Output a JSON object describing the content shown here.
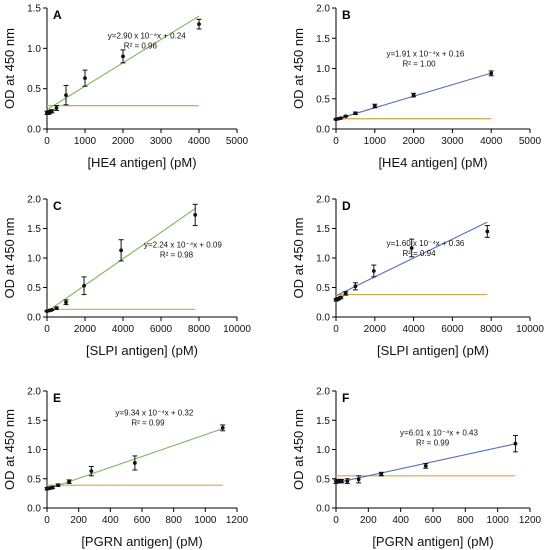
{
  "chart_data": [
    {
      "type": "scatter",
      "panel": "A",
      "xlabel": "[HE4 antigen] (pM)",
      "ylabel": "OD at 450 nm",
      "xlim": [
        0,
        5000
      ],
      "ylim": [
        0,
        1.5
      ],
      "xticks": [
        0,
        1000,
        2000,
        3000,
        4000,
        5000
      ],
      "yticks": [
        0,
        0.5,
        1.0,
        1.5
      ],
      "ytick_labels": [
        "0.0",
        "0.5",
        "1.0",
        "1.5"
      ],
      "points": [
        {
          "x": 0,
          "y": 0.2,
          "err": 0.02
        },
        {
          "x": 31,
          "y": 0.2,
          "err": 0.02
        },
        {
          "x": 62,
          "y": 0.21,
          "err": 0.02
        },
        {
          "x": 125,
          "y": 0.22,
          "err": 0.02
        },
        {
          "x": 250,
          "y": 0.26,
          "err": 0.03
        },
        {
          "x": 500,
          "y": 0.42,
          "err": 0.12
        },
        {
          "x": 1000,
          "y": 0.63,
          "err": 0.1
        },
        {
          "x": 2000,
          "y": 0.9,
          "err": 0.08
        },
        {
          "x": 4000,
          "y": 1.3,
          "err": 0.06
        }
      ],
      "fit": {
        "slope": 0.00029,
        "intercept": 0.24,
        "x_range": [
          0,
          4000
        ],
        "color": "#79b859"
      },
      "cutoff": {
        "y": 0.29,
        "x_range": [
          0,
          4000
        ],
        "color": "#d4a843"
      },
      "equation": "y=2.90 x 10⁻⁴x + 0.24",
      "r2": "R² = 0.96"
    },
    {
      "type": "scatter",
      "panel": "B",
      "xlabel": "[HE4 antigen] (pM)",
      "ylabel": "OD at 450 nm",
      "xlim": [
        0,
        5000
      ],
      "ylim": [
        0,
        2.0
      ],
      "xticks": [
        0,
        1000,
        2000,
        3000,
        4000,
        5000
      ],
      "yticks": [
        0,
        0.5,
        1.0,
        1.5,
        2.0
      ],
      "ytick_labels": [
        "0.0",
        "0.5",
        "1.0",
        "1.5",
        "2.0"
      ],
      "points": [
        {
          "x": 0,
          "y": 0.16,
          "err": 0.01
        },
        {
          "x": 62,
          "y": 0.17,
          "err": 0.01
        },
        {
          "x": 125,
          "y": 0.18,
          "err": 0.01
        },
        {
          "x": 250,
          "y": 0.21,
          "err": 0.01
        },
        {
          "x": 500,
          "y": 0.26,
          "err": 0.02
        },
        {
          "x": 1000,
          "y": 0.38,
          "err": 0.03
        },
        {
          "x": 2000,
          "y": 0.56,
          "err": 0.03
        },
        {
          "x": 4000,
          "y": 0.92,
          "err": 0.04
        }
      ],
      "fit": {
        "slope": 0.000191,
        "intercept": 0.16,
        "x_range": [
          0,
          4000
        ],
        "color": "#5570b5"
      },
      "cutoff": {
        "y": 0.17,
        "x_range": [
          0,
          4000
        ],
        "color": "#d4a843"
      },
      "equation": "y=1.91 x 10⁻⁴x + 0.16",
      "r2": "R² = 1.00"
    },
    {
      "type": "scatter",
      "panel": "C",
      "xlabel": "[SLPI antigen] (pM)",
      "ylabel": "OD at 450 nm",
      "xlim": [
        0,
        10000
      ],
      "ylim": [
        0,
        2.0
      ],
      "xticks": [
        0,
        2000,
        4000,
        6000,
        8000,
        10000
      ],
      "yticks": [
        0,
        0.5,
        1.0,
        1.5,
        2.0
      ],
      "ytick_labels": [
        "0.0",
        "0.5",
        "1.0",
        "1.5",
        "2.0"
      ],
      "points": [
        {
          "x": 0,
          "y": 0.1,
          "err": 0.01
        },
        {
          "x": 125,
          "y": 0.11,
          "err": 0.01
        },
        {
          "x": 250,
          "y": 0.12,
          "err": 0.01
        },
        {
          "x": 500,
          "y": 0.15,
          "err": 0.02
        },
        {
          "x": 1000,
          "y": 0.25,
          "err": 0.04
        },
        {
          "x": 1950,
          "y": 0.53,
          "err": 0.15
        },
        {
          "x": 3900,
          "y": 1.13,
          "err": 0.18
        },
        {
          "x": 7800,
          "y": 1.73,
          "err": 0.18
        }
      ],
      "fit": {
        "slope": 0.000224,
        "intercept": 0.09,
        "x_range": [
          0,
          7800
        ],
        "color": "#79b859"
      },
      "cutoff": {
        "y": 0.13,
        "x_range": [
          0,
          7800
        ],
        "color": "#d4a843"
      },
      "equation": "y=2.24 x 10⁻⁴x + 0.09",
      "r2": "R² = 0.98"
    },
    {
      "type": "scatter",
      "panel": "D",
      "xlabel": "[SLPI antigen] (pM)",
      "ylabel": "OD at 450 nm",
      "xlim": [
        0,
        10000
      ],
      "ylim": [
        0,
        2.0
      ],
      "xticks": [
        0,
        2000,
        4000,
        6000,
        8000,
        10000
      ],
      "yticks": [
        0,
        0.5,
        1.0,
        1.5,
        2.0
      ],
      "ytick_labels": [
        "0.0",
        "0.5",
        "1.0",
        "1.5",
        "2.0"
      ],
      "points": [
        {
          "x": 0,
          "y": 0.29,
          "err": 0.02
        },
        {
          "x": 62,
          "y": 0.3,
          "err": 0.02
        },
        {
          "x": 125,
          "y": 0.31,
          "err": 0.02
        },
        {
          "x": 250,
          "y": 0.33,
          "err": 0.02
        },
        {
          "x": 500,
          "y": 0.4,
          "err": 0.03
        },
        {
          "x": 1000,
          "y": 0.52,
          "err": 0.06
        },
        {
          "x": 1950,
          "y": 0.78,
          "err": 0.1
        },
        {
          "x": 3900,
          "y": 1.17,
          "err": 0.15
        },
        {
          "x": 7800,
          "y": 1.45,
          "err": 0.1
        }
      ],
      "fit": {
        "slope": 0.00016,
        "intercept": 0.36,
        "x_range": [
          0,
          7800
        ],
        "color": "#5570b5"
      },
      "cutoff": {
        "y": 0.38,
        "x_range": [
          0,
          7800
        ],
        "color": "#d4a843"
      },
      "equation": "y=1.60 x 10⁻⁴x + 0.36",
      "r2": "R² = 0.94"
    },
    {
      "type": "scatter",
      "panel": "E",
      "xlabel": "[PGRN antigen] (pM)",
      "ylabel": "OD at 450 nm",
      "xlim": [
        0,
        1200
      ],
      "ylim": [
        0,
        2.0
      ],
      "xticks": [
        0,
        200,
        400,
        600,
        800,
        1000,
        1200
      ],
      "yticks": [
        0,
        0.5,
        1.0,
        1.5,
        2.0
      ],
      "ytick_labels": [
        "0.0",
        "0.5",
        "1.0",
        "1.5",
        "2.0"
      ],
      "points": [
        {
          "x": 0,
          "y": 0.33,
          "err": 0.02
        },
        {
          "x": 17,
          "y": 0.34,
          "err": 0.02
        },
        {
          "x": 35,
          "y": 0.35,
          "err": 0.02
        },
        {
          "x": 70,
          "y": 0.39,
          "err": 0.02
        },
        {
          "x": 140,
          "y": 0.45,
          "err": 0.03
        },
        {
          "x": 280,
          "y": 0.63,
          "err": 0.08
        },
        {
          "x": 555,
          "y": 0.77,
          "err": 0.12
        },
        {
          "x": 1110,
          "y": 1.37,
          "err": 0.05
        }
      ],
      "fit": {
        "slope": 0.000934,
        "intercept": 0.32,
        "x_range": [
          0,
          1110
        ],
        "color": "#79b859"
      },
      "cutoff": {
        "y": 0.39,
        "x_range": [
          0,
          1110
        ],
        "color": "#d4a843"
      },
      "equation": "y=9.34 x 10⁻⁴x + 0.32",
      "r2": "R² = 0.99"
    },
    {
      "type": "scatter",
      "panel": "F",
      "xlabel": "[PGRN antigen] (pM)",
      "ylabel": "OD at 450 nm",
      "xlim": [
        0,
        1200
      ],
      "ylim": [
        0,
        2.0
      ],
      "xticks": [
        0,
        200,
        400,
        600,
        800,
        1000,
        1200
      ],
      "yticks": [
        0,
        0.5,
        1.0,
        1.5,
        2.0
      ],
      "ytick_labels": [
        "0.0",
        "0.5",
        "1.0",
        "1.5",
        "2.0"
      ],
      "points": [
        {
          "x": 0,
          "y": 0.45,
          "err": 0.03
        },
        {
          "x": 17,
          "y": 0.46,
          "err": 0.03
        },
        {
          "x": 35,
          "y": 0.46,
          "err": 0.03
        },
        {
          "x": 70,
          "y": 0.46,
          "err": 0.04
        },
        {
          "x": 140,
          "y": 0.49,
          "err": 0.06
        },
        {
          "x": 280,
          "y": 0.58,
          "err": 0.03
        },
        {
          "x": 555,
          "y": 0.72,
          "err": 0.04
        },
        {
          "x": 1110,
          "y": 1.1,
          "err": 0.14
        }
      ],
      "fit": {
        "slope": 0.000601,
        "intercept": 0.43,
        "x_range": [
          0,
          1110
        ],
        "color": "#5570b5"
      },
      "cutoff": {
        "y": 0.55,
        "x_range": [
          0,
          1110
        ],
        "color": "#d4a843"
      },
      "equation": "y=6.01 x 10⁻⁴x + 0.43",
      "r2": "R² = 0.99"
    }
  ]
}
